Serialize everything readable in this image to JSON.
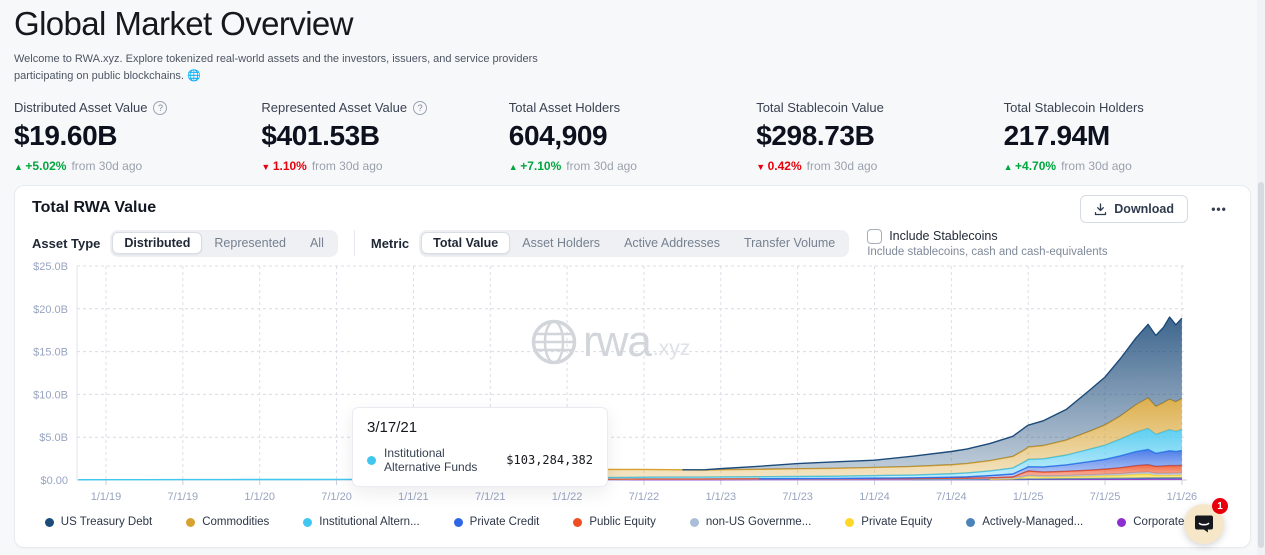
{
  "page": {
    "title": "Global Market Overview",
    "subtitle": "Welcome to RWA.xyz. Explore tokenized real-world assets and the investors, issuers, and service providers participating on public blockchains. 🌐",
    "info_glyph": "?"
  },
  "stats": [
    {
      "label": "Distributed Asset Value",
      "has_info": true,
      "value": "$19.60B",
      "trend_arrow": "▲",
      "trend_pct": "+5.02%",
      "trend_suffix": "from 30d ago",
      "trend_color": "#00a63e"
    },
    {
      "label": "Represented Asset Value",
      "has_info": true,
      "value": "$401.53B",
      "trend_arrow": "▼",
      "trend_pct": "1.10%",
      "trend_suffix": "from 30d ago",
      "trend_color": "#e7000b"
    },
    {
      "label": "Total Asset Holders",
      "has_info": false,
      "value": "604,909",
      "trend_arrow": "▲",
      "trend_pct": "+7.10%",
      "trend_suffix": "from 30d ago",
      "trend_color": "#00a63e"
    },
    {
      "label": "Total Stablecoin Value",
      "has_info": false,
      "value": "$298.73B",
      "trend_arrow": "▼",
      "trend_pct": "0.42%",
      "trend_suffix": "from 30d ago",
      "trend_color": "#e7000b"
    },
    {
      "label": "Total Stablecoin Holders",
      "has_info": false,
      "value": "217.94M",
      "trend_arrow": "▲",
      "trend_pct": "+4.70%",
      "trend_suffix": "from 30d ago",
      "trend_color": "#00a63e"
    }
  ],
  "panel": {
    "title": "Total RWA Value",
    "download_label": "Download",
    "more_label": "•••",
    "asset_type_label": "Asset Type",
    "asset_type_options": [
      "Distributed",
      "Represented",
      "All"
    ],
    "metric_label": "Metric",
    "metric_options": [
      "Total Value",
      "Asset Holders",
      "Active Addresses",
      "Transfer Volume"
    ],
    "checkbox_label": "Include Stablecoins",
    "checkbox_sublabel": "Include stablecoins, cash and cash-equivalents"
  },
  "watermark": {
    "text": "rwa",
    "suffix": ".xyz"
  },
  "tooltip": {
    "date": "3/17/21",
    "series": "Institutional Alternative Funds",
    "value": "$103,284,382",
    "color": "#41c6f0"
  },
  "chat": {
    "badge": "1"
  },
  "chart_data": {
    "type": "area",
    "stacked": true,
    "title": "Total RWA Value",
    "ylim": [
      0,
      25
    ],
    "grid": true,
    "legend_position": "bottom",
    "yticks": {
      "values": [
        0,
        5,
        10,
        15,
        20,
        25
      ],
      "labels": [
        "$0.00",
        "$5.0B",
        "$10.0B",
        "$15.0B",
        "$20.0B",
        "$25.0B"
      ]
    },
    "xticks": {
      "values": [
        2019,
        2019.5,
        2020,
        2020.5,
        2021,
        2021.5,
        2022,
        2022.5,
        2023,
        2023.5,
        2024,
        2024.5,
        2025,
        2025.5,
        2026
      ],
      "labels": [
        "1/1/19",
        "7/1/19",
        "1/1/20",
        "7/1/20",
        "1/1/21",
        "7/1/21",
        "1/1/22",
        "7/1/22",
        "1/1/23",
        "7/1/23",
        "1/1/24",
        "7/1/24",
        "1/1/25",
        "7/1/25",
        "1/1/26"
      ]
    },
    "x_unit": "year",
    "x": [
      2018.82,
      2019.0,
      2019.25,
      2019.5,
      2019.75,
      2020.0,
      2020.25,
      2020.5,
      2020.75,
      2021.0,
      2021.21,
      2021.42,
      2021.44,
      2021.6,
      2021.7,
      2021.8,
      2021.9,
      2022.0,
      2022.1,
      2022.17,
      2022.25,
      2022.5,
      2022.75,
      2022.9,
      2023.0,
      2023.25,
      2023.5,
      2023.75,
      2024.0,
      2024.25,
      2024.5,
      2024.6,
      2024.75,
      2024.9,
      2024.98,
      2025.0,
      2025.1,
      2025.25,
      2025.4,
      2025.5,
      2025.6,
      2025.7,
      2025.78,
      2025.83,
      2025.88,
      2025.92,
      2025.96,
      2026.0
    ],
    "values_unit": "USD billions",
    "series": [
      {
        "name": "us-treasury-debt",
        "legend_label": "US Treasury Debt",
        "color": "#1c4b7a",
        "values": [
          0,
          0,
          0,
          0,
          0,
          0,
          0,
          0,
          0,
          0,
          0,
          0,
          0,
          0,
          0,
          0,
          0,
          0,
          0,
          0,
          0,
          0,
          0,
          0.05,
          0.12,
          0.35,
          0.6,
          0.75,
          0.85,
          1.2,
          1.55,
          1.7,
          2.0,
          2.35,
          2.6,
          2.55,
          2.9,
          3.6,
          4.8,
          5.6,
          6.7,
          7.8,
          8.6,
          8.3,
          8.8,
          9.6,
          9.0,
          9.4
        ]
      },
      {
        "name": "commodities",
        "legend_label": "Commodities",
        "color": "#d7a22f",
        "values": [
          0,
          0,
          0,
          0,
          0,
          0,
          0,
          0,
          0,
          0,
          0,
          0,
          0,
          0,
          0.25,
          0.45,
          0.55,
          0.65,
          0.8,
          1.0,
          0.95,
          0.9,
          0.85,
          0.82,
          0.85,
          0.87,
          0.9,
          0.92,
          0.95,
          1.0,
          1.05,
          1.1,
          1.2,
          1.35,
          1.4,
          1.45,
          1.55,
          1.75,
          2.1,
          2.35,
          2.7,
          3.2,
          3.55,
          3.25,
          3.4,
          3.55,
          3.45,
          3.6
        ]
      },
      {
        "name": "institutional-alternative-funds",
        "legend_label": "Institutional Altern...",
        "color": "#41c6f0",
        "values": [
          0.03,
          0.04,
          0.04,
          0.05,
          0.05,
          0.06,
          0.06,
          0.07,
          0.08,
          0.09,
          0.103,
          0.12,
          0.19,
          0.2,
          0.2,
          0.2,
          0.2,
          0.2,
          0.2,
          0.2,
          0.2,
          0.2,
          0.21,
          0.21,
          0.22,
          0.23,
          0.25,
          0.27,
          0.3,
          0.33,
          0.4,
          0.45,
          0.55,
          0.7,
          0.8,
          0.85,
          0.95,
          1.15,
          1.45,
          1.65,
          1.95,
          2.25,
          2.45,
          2.2,
          2.35,
          2.45,
          2.35,
          2.45
        ]
      },
      {
        "name": "private-credit",
        "legend_label": "Private Credit",
        "color": "#2e66e5",
        "values": [
          0,
          0,
          0,
          0,
          0,
          0,
          0,
          0,
          0,
          0,
          0,
          0,
          0,
          0,
          0,
          0,
          0,
          0,
          0,
          0,
          0,
          0,
          0,
          0,
          0,
          0,
          0.02,
          0.03,
          0.05,
          0.08,
          0.12,
          0.15,
          0.25,
          0.35,
          0.45,
          0.5,
          0.6,
          0.75,
          1.0,
          1.15,
          1.4,
          1.65,
          1.8,
          1.55,
          1.65,
          1.75,
          1.65,
          1.75
        ]
      },
      {
        "name": "public-equity",
        "legend_label": "Public Equity",
        "color": "#ee4e22",
        "values": [
          0,
          0,
          0,
          0,
          0,
          0,
          0,
          0,
          0,
          0,
          0,
          0,
          0,
          0,
          0,
          0,
          0.02,
          0.03,
          0.03,
          0.03,
          0.04,
          0.04,
          0.04,
          0.04,
          0.04,
          0.04,
          0.04,
          0.04,
          0.05,
          0.05,
          0.05,
          0.06,
          0.07,
          0.1,
          0.45,
          0.5,
          0.45,
          0.5,
          0.55,
          0.6,
          0.7,
          0.8,
          0.85,
          0.8,
          0.85,
          0.9,
          0.88,
          0.9
        ]
      },
      {
        "name": "non-us-government-debt",
        "legend_label": "non-US Governme...",
        "color": "#abbed9",
        "values": [
          0,
          0,
          0,
          0,
          0,
          0,
          0,
          0,
          0,
          0,
          0,
          0,
          0,
          0,
          0,
          0,
          0,
          0,
          0,
          0,
          0,
          0.05,
          0.05,
          0.05,
          0.06,
          0.06,
          0.06,
          0.06,
          0.07,
          0.07,
          0.08,
          0.08,
          0.1,
          0.1,
          0.1,
          0.12,
          0.13,
          0.15,
          0.17,
          0.18,
          0.2,
          0.22,
          0.23,
          0.23,
          0.24,
          0.24,
          0.25,
          0.25
        ]
      },
      {
        "name": "private-equity",
        "legend_label": "Private Equity",
        "color": "#fdd72a",
        "values": [
          0,
          0,
          0,
          0,
          0,
          0,
          0,
          0,
          0,
          0,
          0,
          0,
          0,
          0,
          0,
          0,
          0,
          0,
          0,
          0,
          0,
          0,
          0,
          0,
          0,
          0,
          0,
          0,
          0,
          0,
          0,
          0,
          0,
          0.05,
          0.25,
          0.3,
          0.22,
          0.22,
          0.25,
          0.3,
          0.32,
          0.42,
          0.45,
          0.3,
          0.28,
          0.28,
          0.28,
          0.28
        ]
      },
      {
        "name": "actively-managed-funds",
        "legend_label": "Actively-Managed...",
        "color": "#4b84b8",
        "values": [
          0,
          0,
          0,
          0,
          0,
          0,
          0,
          0,
          0,
          0,
          0,
          0,
          0,
          0,
          0,
          0,
          0,
          0,
          0,
          0,
          0,
          0,
          0,
          0,
          0,
          0,
          0,
          0,
          0,
          0,
          0.02,
          0.02,
          0.03,
          0.03,
          0.04,
          0.05,
          0.05,
          0.06,
          0.08,
          0.09,
          0.1,
          0.12,
          0.13,
          0.13,
          0.14,
          0.14,
          0.15,
          0.15
        ]
      },
      {
        "name": "corporate-bonds",
        "legend_label": "Corporate Bonds",
        "color": "#8c2fd0",
        "values": [
          0,
          0,
          0,
          0,
          0,
          0,
          0,
          0,
          0,
          0,
          0,
          0,
          0,
          0,
          0,
          0,
          0,
          0,
          0,
          0.03,
          0.04,
          0.04,
          0.04,
          0.04,
          0.04,
          0.05,
          0.05,
          0.05,
          0.05,
          0.05,
          0.06,
          0.06,
          0.06,
          0.07,
          0.07,
          0.08,
          0.08,
          0.09,
          0.1,
          0.1,
          0.11,
          0.11,
          0.12,
          0.12,
          0.12,
          0.12,
          0.12,
          0.12
        ]
      }
    ]
  }
}
